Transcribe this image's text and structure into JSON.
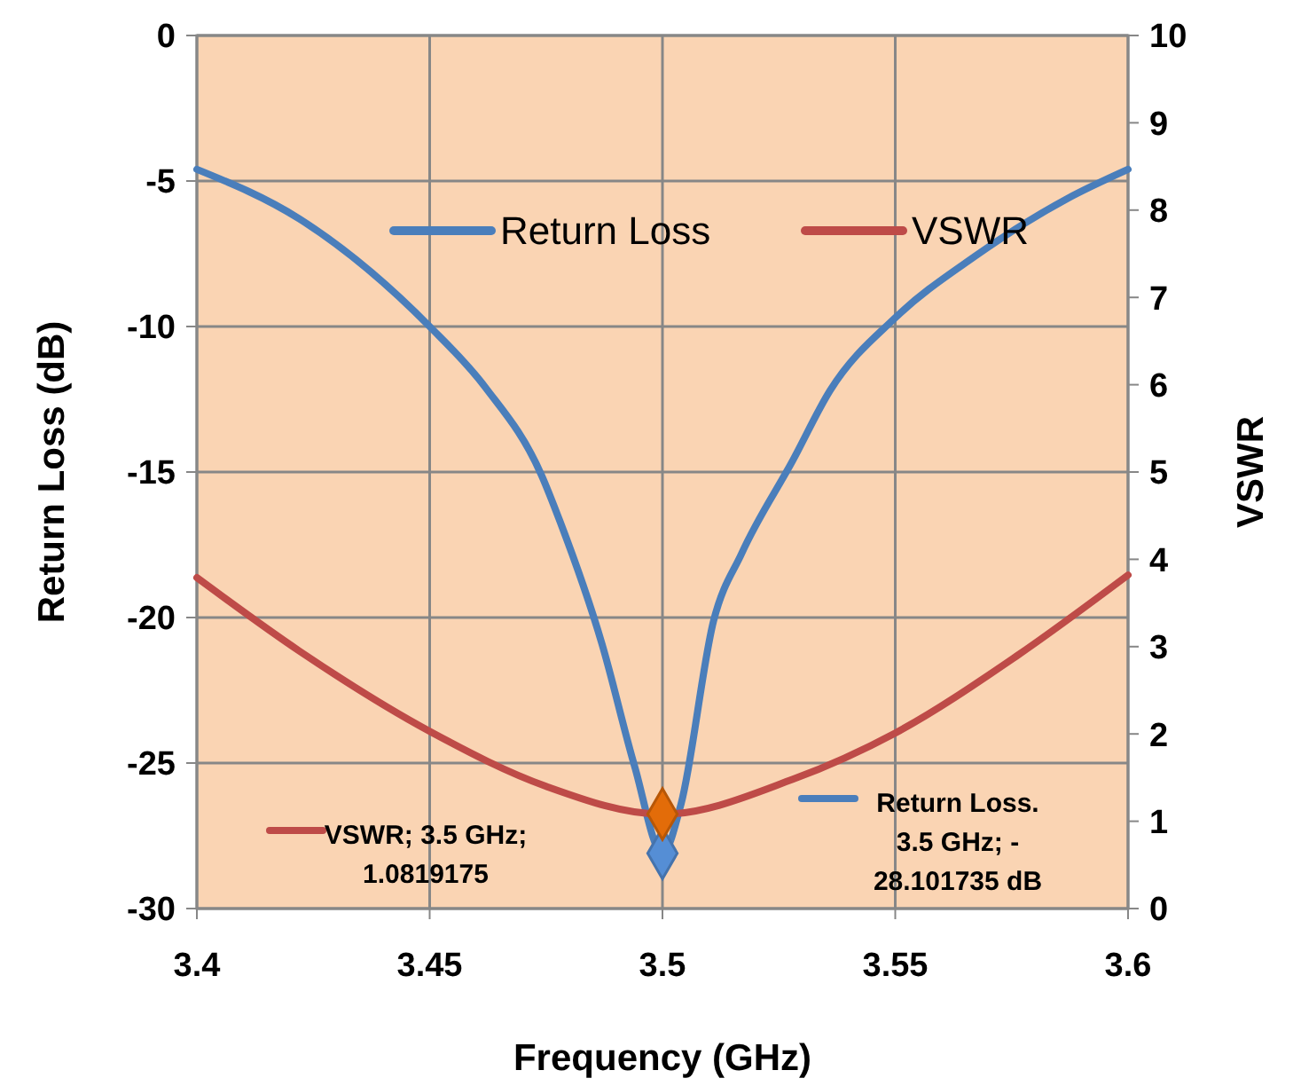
{
  "chart_data": {
    "type": "line",
    "xlabel": "Frequency (GHz)",
    "ylabel": "Return Loss (dB)",
    "y2label": "VSWR",
    "xlim": [
      3.4,
      3.6
    ],
    "xticks": [
      3.4,
      3.45,
      3.5,
      3.55,
      3.6
    ],
    "ylim": [
      -30,
      0
    ],
    "yticks": [
      -30,
      -25,
      -20,
      -15,
      -10,
      -5,
      0
    ],
    "y2lim": [
      0,
      10
    ],
    "y2ticks": [
      0,
      1,
      2,
      3,
      4,
      5,
      6,
      7,
      8,
      9,
      10
    ],
    "grid": true,
    "legend": "top",
    "line_style": "solid",
    "series": [
      {
        "name": "Return Loss",
        "color": "#4a7ebb",
        "marker": "none",
        "x": [
          3.4,
          3.422,
          3.45,
          3.462,
          3.474,
          3.478,
          3.487,
          3.494,
          3.5,
          3.504,
          3.511,
          3.517,
          3.528,
          3.536,
          3.55,
          3.567,
          3.587,
          3.6
        ],
        "values": [
          -4.6,
          -6.3,
          -10,
          -12.1,
          -15.1,
          -16.7,
          -20.9,
          -25.1,
          -28.1,
          -26.4,
          -20.1,
          -17.8,
          -14.6,
          -12.2,
          -9.7,
          -7.6,
          -5.6,
          -4.6
        ]
      },
      {
        "name": "VSWR",
        "color": "#be4b48",
        "marker": "none",
        "axis": "y2",
        "x": [
          3.4,
          3.422,
          3.45,
          3.475,
          3.5,
          3.528,
          3.55,
          3.576,
          3.6
        ],
        "values": [
          3.79,
          2.95,
          2.03,
          1.4,
          1.08,
          1.48,
          2.01,
          2.89,
          3.82
        ]
      },
      {
        "type": "scatter",
        "color": "#558ed5",
        "marker": "diamond",
        "x": [
          3.5
        ],
        "values": [
          -28.101735
        ]
      },
      {
        "type": "scatter",
        "color": "#e36c09",
        "marker": "diamond",
        "axis": "y2",
        "x": [
          3.5
        ],
        "values": [
          1.0819175
        ]
      }
    ],
    "annotations": [
      "VSWR; 3.5 GHz; 1.0819175",
      "Return Loss. 3.5 GHz; - 28.101735 dB"
    ]
  }
}
